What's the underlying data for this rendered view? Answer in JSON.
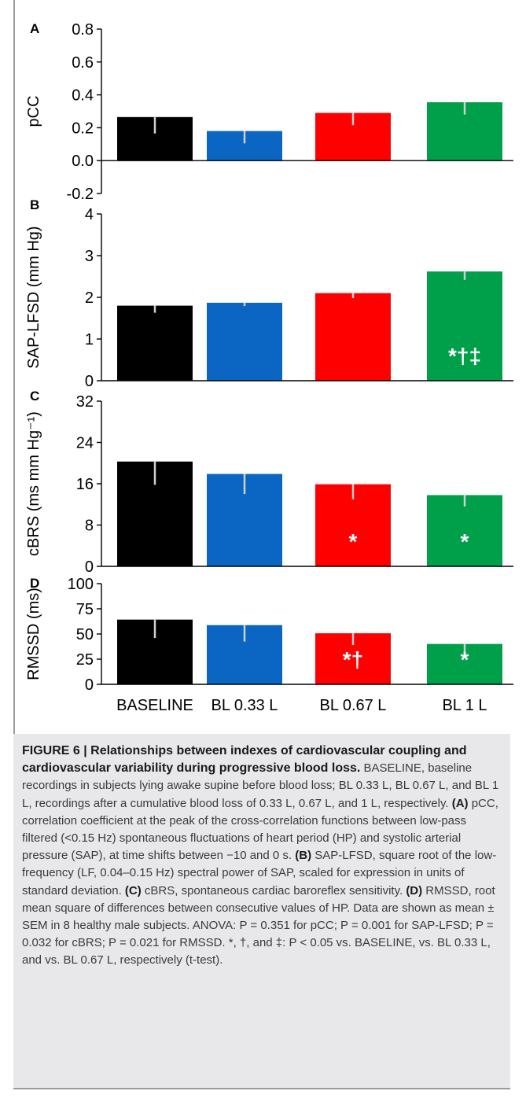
{
  "chart_data": [
    {
      "panel": "A",
      "type": "bar",
      "ylabel": "pCC",
      "categories": [
        "BASELINE",
        "BL 0.33 L",
        "BL 0.67 L",
        "BL 1 L"
      ],
      "values": [
        0.265,
        0.18,
        0.29,
        0.355
      ],
      "sem": [
        0.1,
        0.075,
        0.075,
        0.075
      ],
      "ylim": [
        -0.2,
        0.8
      ],
      "ticks": [
        "-0.2",
        "0.0",
        "0.2",
        "0.4",
        "0.6",
        "0.8"
      ],
      "tick_values": [
        -0.2,
        0,
        0.2,
        0.4,
        0.6,
        0.8
      ],
      "annotations": [
        "",
        "",
        "",
        ""
      ]
    },
    {
      "panel": "B",
      "type": "bar",
      "ylabel": "SAP-LFSD (mm Hg)",
      "categories": [
        "BASELINE",
        "BL 0.33 L",
        "BL 0.67 L",
        "BL 1 L"
      ],
      "values": [
        1.8,
        1.87,
        2.1,
        2.62
      ],
      "sem": [
        0.17,
        0.08,
        0.12,
        0.2
      ],
      "ylim": [
        0,
        4
      ],
      "ticks": [
        "0",
        "1",
        "2",
        "3",
        "4"
      ],
      "tick_values": [
        0,
        1,
        2,
        3,
        4
      ],
      "annotations": [
        "",
        "",
        "",
        "*†‡"
      ]
    },
    {
      "panel": "C",
      "type": "bar",
      "ylabel": "cBRS (ms mm Hg⁻¹)",
      "categories": [
        "BASELINE",
        "BL 0.33 L",
        "BL 0.67 L",
        "BL 1 L"
      ],
      "values": [
        20.3,
        17.9,
        15.9,
        13.8
      ],
      "sem": [
        4.5,
        3.9,
        2.9,
        2.2
      ],
      "ylim": [
        0,
        32
      ],
      "ticks": [
        "0",
        "8",
        "16",
        "24",
        "32"
      ],
      "tick_values": [
        0,
        8,
        16,
        24,
        32
      ],
      "annotations": [
        "",
        "",
        "*",
        "*"
      ]
    },
    {
      "panel": "D",
      "type": "bar",
      "ylabel": "RMSSD (ms)",
      "categories": [
        "BASELINE",
        "BL 0.33 L",
        "BL 0.67 L",
        "BL 1 L"
      ],
      "values": [
        64.3,
        58.8,
        50.7,
        40.1
      ],
      "sem": [
        18.3,
        16.3,
        11.7,
        8.6
      ],
      "ylim": [
        0,
        100
      ],
      "ticks": [
        "0",
        "25",
        "50",
        "75",
        "100"
      ],
      "tick_values": [
        0,
        25,
        50,
        75,
        100
      ],
      "annotations": [
        "",
        "",
        "*†",
        "*"
      ]
    }
  ],
  "bar_colors": [
    "#000000",
    "#0a66c2",
    "#ff0000",
    "#00a04a"
  ],
  "error_bar_color": "#d0d0d0",
  "annotation_color": "#ffffff",
  "caption": {
    "figure_label": "FIGURE 6 | Relationships between indexes of cardiovascular coupling and cardiovascular variability during progressive blood loss.",
    "p1": " BASELINE, baseline recordings in subjects lying awake supine before blood loss; BL 0.33 L, BL 0.67 L, and BL 1 L, recordings after a cumulative blood loss of 0.33 L, 0.67 L, and 1 L, respectively. ",
    "label_a": "(A)",
    "p2": " pCC, correlation coefficient at the peak of the cross-correlation functions between low-pass filtered (<0.15 Hz) spontaneous fluctuations of heart period (HP) and systolic arterial pressure (SAP), at time shifts between −10 and 0 s. ",
    "label_b": "(B)",
    "p3": " SAP-LFSD, square root of the low-frequency (LF, 0.04–0.15 Hz) spectral power of SAP, scaled for expression in units of standard deviation. ",
    "label_c": "(C)",
    "p4": " cBRS, spontaneous cardiac baroreflex sensitivity. ",
    "label_d": "(D)",
    "p5": " RMSSD, root mean square of differences between consecutive values of HP. Data are shown as mean ± SEM in 8 healthy male subjects. ANOVA: P = 0.351 for pCC; P = 0.001 for SAP-LFSD; P = 0.032 for cBRS; P = 0.021 for RMSSD. *, †, and ‡: P < 0.05 vs. BASELINE, vs. BL 0.33 L, and vs. BL 0.67 L, respectively (t-test)."
  }
}
